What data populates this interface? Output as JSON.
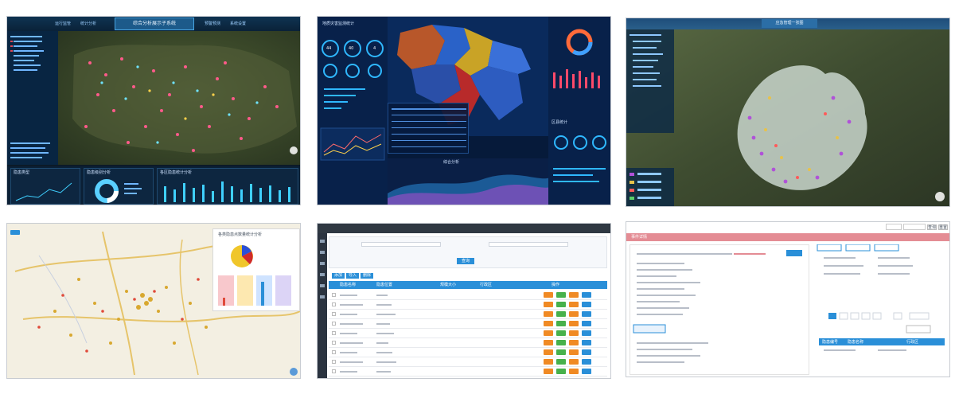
{
  "tiles": [
    {
      "name": "dark-gis-dashboard",
      "title": "综合分析展示子系统",
      "nav": [
        "运行监管",
        "统计分析",
        "预警预测",
        "系统设置"
      ],
      "panels": [
        "隐患类型",
        "隐患级别分析",
        "各区隐患统计分析"
      ]
    },
    {
      "name": "blue-region-dashboard",
      "stats": [
        "44",
        "40",
        "4"
      ],
      "panels": [
        "地质灾害监测统计",
        "综合分析",
        "区县统计"
      ]
    },
    {
      "name": "satellite-map",
      "title": "应急管理一张图"
    },
    {
      "name": "light-map-with-charts",
      "panel_title": "各类隐患点数量统计分析"
    },
    {
      "name": "data-table-admin",
      "search_label": "查询",
      "buttons": [
        "添加",
        "导入",
        "删除"
      ],
      "columns": [
        "隐患名称",
        "隐患位置",
        "规模大小",
        "行政区",
        "操作"
      ]
    },
    {
      "name": "event-detail-form",
      "section_title": "事件详情",
      "buttons": [
        "查询",
        "重置"
      ],
      "right_table_header": [
        "隐患编号",
        "隐患名称",
        "行政区"
      ]
    }
  ],
  "colors": {
    "dark_bg": "#0c1a28",
    "accent_blue": "#2a8fd8",
    "orange": "#f08a24",
    "green": "#47b14b",
    "pink_bar": "#e48c94"
  }
}
